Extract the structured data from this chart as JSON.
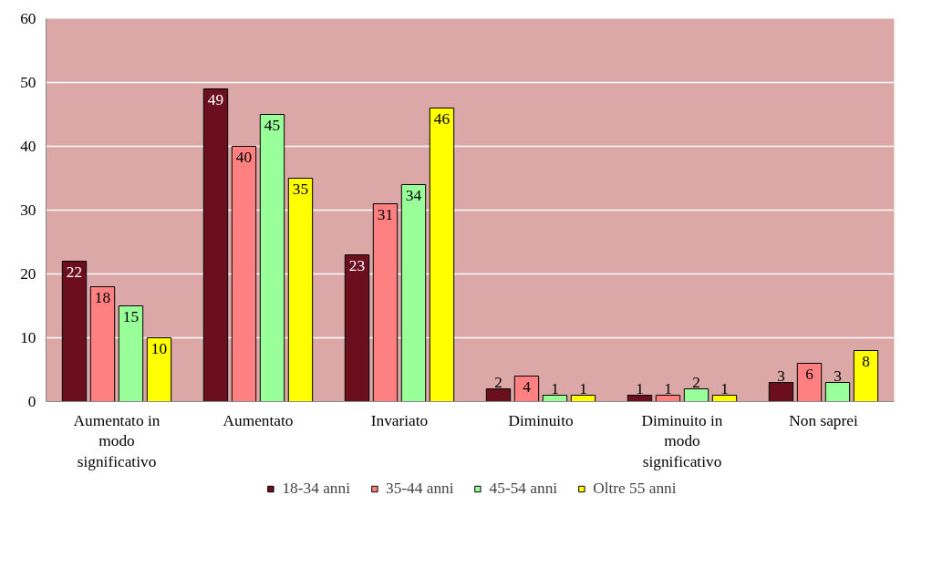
{
  "chart_data": {
    "type": "bar",
    "categories": [
      "Aumentato in modo significativo",
      "Aumentato",
      "Invariato",
      "Diminuito",
      "Diminuito in modo significativo",
      "Non saprei"
    ],
    "series": [
      {
        "name": "18-34 anni",
        "color": "#6b0f1f",
        "values": [
          22,
          49,
          23,
          2,
          1,
          3
        ]
      },
      {
        "name": "35-44 anni",
        "color": "#ff8080",
        "values": [
          18,
          40,
          31,
          4,
          1,
          6
        ]
      },
      {
        "name": "45-54 anni",
        "color": "#99ff99",
        "values": [
          15,
          45,
          34,
          1,
          2,
          3
        ]
      },
      {
        "name": "Oltre 55 anni",
        "color": "#ffff00",
        "values": [
          10,
          35,
          46,
          1,
          1,
          8
        ]
      }
    ],
    "ylim": [
      0,
      60
    ],
    "yticks": [
      0,
      10,
      20,
      30,
      40,
      50,
      60
    ],
    "grid": "y",
    "legend": "bottom",
    "data_labels": true
  }
}
